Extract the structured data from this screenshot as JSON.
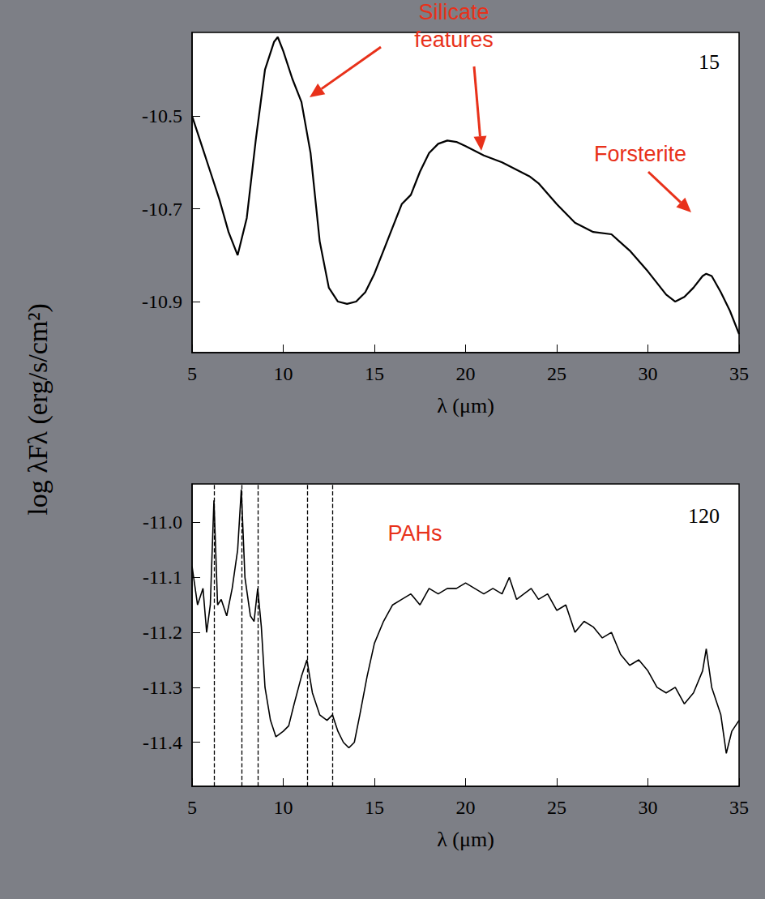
{
  "chart_data": [
    {
      "type": "line",
      "title": "15",
      "x_label": "λ (μm)",
      "y_label": "log λFλ (erg/s/cm²)",
      "annotations": [
        "Silicate features",
        "Forsterite"
      ],
      "x": [
        5,
        5.5,
        6,
        6.5,
        7,
        7.5,
        8,
        8.5,
        9,
        9.5,
        9.7,
        10,
        10.5,
        10.8,
        11,
        11.5,
        12,
        12.5,
        13,
        13.5,
        14,
        14.5,
        15,
        15.5,
        16,
        16.5,
        17,
        17.5,
        18,
        18.5,
        19,
        19.5,
        20,
        21,
        22,
        23,
        23.5,
        24,
        25,
        26,
        27,
        28,
        29,
        30,
        31,
        31.5,
        32,
        32.5,
        33,
        33.2,
        33.5,
        34,
        34.5,
        35
      ],
      "values": [
        -10.5,
        -10.56,
        -10.62,
        -10.68,
        -10.75,
        -10.8,
        -10.72,
        -10.55,
        -10.4,
        -10.34,
        -10.33,
        -10.36,
        -10.42,
        -10.45,
        -10.47,
        -10.58,
        -10.77,
        -10.87,
        -10.9,
        -10.905,
        -10.9,
        -10.88,
        -10.84,
        -10.79,
        -10.74,
        -10.69,
        -10.67,
        -10.62,
        -10.58,
        -10.56,
        -10.553,
        -10.556,
        -10.565,
        -10.585,
        -10.6,
        -10.62,
        -10.63,
        -10.645,
        -10.69,
        -10.73,
        -10.75,
        -10.755,
        -10.79,
        -10.835,
        -10.885,
        -10.9,
        -10.89,
        -10.87,
        -10.845,
        -10.84,
        -10.845,
        -10.88,
        -10.92,
        -10.97
      ],
      "color": "#000000",
      "xlim": [
        5,
        35
      ],
      "xticks": [
        5,
        10,
        15,
        20,
        25,
        30,
        35
      ],
      "ylim": [
        -11.01,
        -10.32
      ],
      "yticks": [
        -10.9,
        -10.7,
        -10.5
      ],
      "grid": false
    },
    {
      "type": "line",
      "title": "120",
      "x_label": "λ (μm)",
      "annotations": [
        "PAHs"
      ],
      "pah_lines": [
        6.2,
        7.7,
        8.6,
        11.3,
        12.7
      ],
      "x": [
        5,
        5.3,
        5.6,
        5.8,
        6.0,
        6.2,
        6.4,
        6.6,
        6.9,
        7.2,
        7.5,
        7.7,
        7.9,
        8.2,
        8.4,
        8.6,
        8.8,
        9.0,
        9.3,
        9.6,
        10.0,
        10.3,
        10.6,
        11.0,
        11.3,
        11.6,
        12.0,
        12.4,
        12.7,
        13.0,
        13.3,
        13.6,
        13.9,
        14.2,
        14.6,
        15,
        15.5,
        16,
        16.5,
        17,
        17.5,
        18,
        18.5,
        19,
        19.5,
        20,
        20.5,
        21,
        21.5,
        22,
        22.4,
        22.8,
        23.2,
        23.6,
        24,
        24.5,
        25,
        25.5,
        26,
        26.5,
        27,
        27.5,
        28,
        28.5,
        29,
        29.5,
        30,
        30.5,
        31,
        31.5,
        32,
        32.5,
        33,
        33.2,
        33.5,
        34,
        34.3,
        34.6,
        35
      ],
      "values": [
        -11.08,
        -11.15,
        -11.12,
        -11.2,
        -11.15,
        -10.96,
        -11.15,
        -11.14,
        -11.17,
        -11.12,
        -11.05,
        -10.94,
        -11.1,
        -11.17,
        -11.18,
        -11.12,
        -11.19,
        -11.3,
        -11.36,
        -11.39,
        -11.38,
        -11.37,
        -11.33,
        -11.28,
        -11.25,
        -11.31,
        -11.35,
        -11.36,
        -11.35,
        -11.38,
        -11.4,
        -11.41,
        -11.4,
        -11.35,
        -11.28,
        -11.22,
        -11.18,
        -11.15,
        -11.14,
        -11.13,
        -11.15,
        -11.12,
        -11.13,
        -11.12,
        -11.12,
        -11.11,
        -11.12,
        -11.13,
        -11.12,
        -11.13,
        -11.1,
        -11.14,
        -11.13,
        -11.12,
        -11.14,
        -11.13,
        -11.16,
        -11.15,
        -11.2,
        -11.18,
        -11.19,
        -11.21,
        -11.2,
        -11.24,
        -11.26,
        -11.25,
        -11.27,
        -11.3,
        -11.31,
        -11.3,
        -11.33,
        -11.31,
        -11.27,
        -11.23,
        -11.3,
        -11.35,
        -11.42,
        -11.38,
        -11.36
      ],
      "color": "#000000",
      "xlim": [
        5,
        35
      ],
      "xticks": [
        5,
        10,
        15,
        20,
        25,
        30,
        35
      ],
      "ylim": [
        -11.48,
        -10.93
      ],
      "yticks": [
        {
          "value": -11,
          "label": "-11.0"
        },
        -11.1,
        -11.2,
        -11.3,
        -11.4
      ],
      "grid": false
    }
  ]
}
